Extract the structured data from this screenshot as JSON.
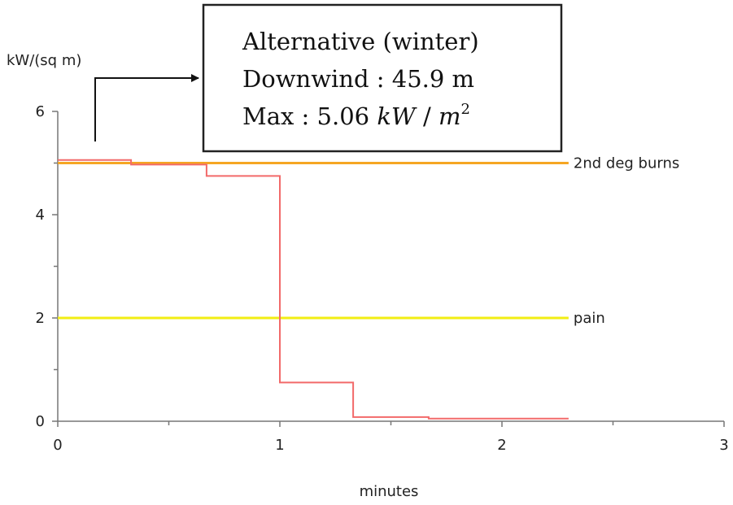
{
  "chart_data": {
    "type": "line",
    "ylabel": "kW/(sq m)",
    "xlabel": "minutes",
    "xlim": [
      0,
      3
    ],
    "ylim": [
      0,
      6
    ],
    "x_ticks": [
      "0",
      "1",
      "2",
      "3"
    ],
    "y_ticks": [
      "0",
      "2",
      "4",
      "6"
    ],
    "grid": false,
    "series": [
      {
        "style": "step",
        "color": "#f26a6a",
        "points": [
          [
            0,
            5.06
          ],
          [
            0.33,
            5.06
          ],
          [
            0.33,
            4.97
          ],
          [
            0.67,
            4.97
          ],
          [
            0.67,
            4.75
          ],
          [
            1.0,
            4.75
          ],
          [
            1.0,
            0.75
          ],
          [
            1.33,
            0.75
          ],
          [
            1.33,
            0.08
          ],
          [
            1.67,
            0.08
          ],
          [
            1.67,
            0.05
          ],
          [
            2.3,
            0.05
          ]
        ]
      },
      {
        "name": "2nd deg burns",
        "color": "#f5a623",
        "y": 5.0,
        "x_end": 2.3
      },
      {
        "name": "pain",
        "color": "#f2ee12",
        "y": 2.0,
        "x_end": 2.3
      }
    ],
    "annotation": {
      "line1": "Alternative (winter)",
      "line2": "Downwind : 45.9 m",
      "line3_prefix": "Max : 5.06 ",
      "line3_unit": "kW",
      "line3_slash": " / ",
      "line3_m": "m",
      "line3_exp": "2"
    }
  }
}
